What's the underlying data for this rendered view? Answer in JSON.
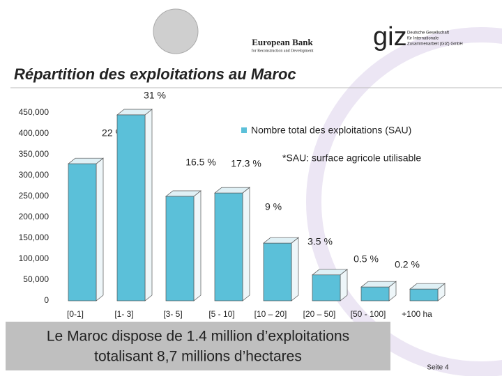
{
  "header": {
    "bank_name": "European Bank",
    "bank_sub": "for Reconstruction and Development",
    "giz": "giz",
    "giz_sub": [
      "Deutsche Gesellschaft",
      "für Internationale",
      "Zusammenarbeit (GIZ) GmbH"
    ]
  },
  "chart_data": {
    "type": "bar",
    "title": "Répartition des exploitations au Maroc",
    "categories": [
      "[0-1]",
      "[1- 3]",
      "[3- 5]",
      "[5 - 10]",
      "[10 – 20]",
      "[20 – 50]",
      "[50 - 100]",
      "+100 ha"
    ],
    "series": [
      {
        "name": "Nombre total des exploitations (SAU)",
        "color": "#5bc0d9",
        "values": [
          328000,
          445000,
          250000,
          258000,
          138000,
          62000,
          33000,
          28000
        ]
      }
    ],
    "annotations": [
      "31 %",
      "22 %",
      "16.5 %",
      "17.3 %",
      "9 %",
      "3.5 %",
      "0.5 %",
      "0.2 %"
    ],
    "note": "*SAU: surface agricole utilisable",
    "ylim": [
      0,
      450000
    ],
    "yticks": [
      0,
      {
        "value": 50000,
        "label": "50,000"
      },
      {
        "value": 100000,
        "label": "100,000"
      },
      {
        "value": 150000,
        "label": "150,000"
      },
      {
        "value": 200000,
        "label": "200,000"
      },
      {
        "value": 250000,
        "label": "250,000"
      },
      {
        "value": 300000,
        "label": "300,000"
      },
      {
        "value": 350000,
        "label": "350,000"
      },
      {
        "value": 400000,
        "label": "400,000"
      },
      {
        "value": 450000,
        "label": "450,000"
      }
    ],
    "grid": false
  },
  "summary": [
    "Le Maroc dispose de 1.4 million d’exploitations",
    "totalisant 8,7 millions d’hectares"
  ],
  "footer": "Seite 4"
}
